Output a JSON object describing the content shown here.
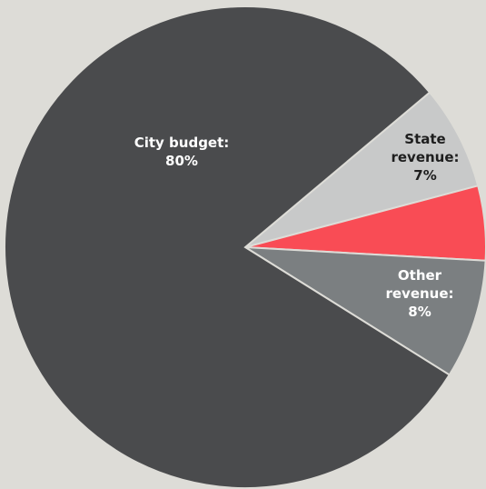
{
  "chart_data": {
    "type": "pie",
    "categories": [
      "City budget:",
      "State revenue:",
      null,
      "Other revenue:"
    ],
    "values": [
      80,
      7,
      5,
      8
    ],
    "value_labels": [
      "80%",
      "7%",
      null,
      "8%"
    ],
    "colors": [
      "#4a4b4d",
      "#c8c9c9",
      "#f94c55",
      "#7b7f81"
    ]
  }
}
